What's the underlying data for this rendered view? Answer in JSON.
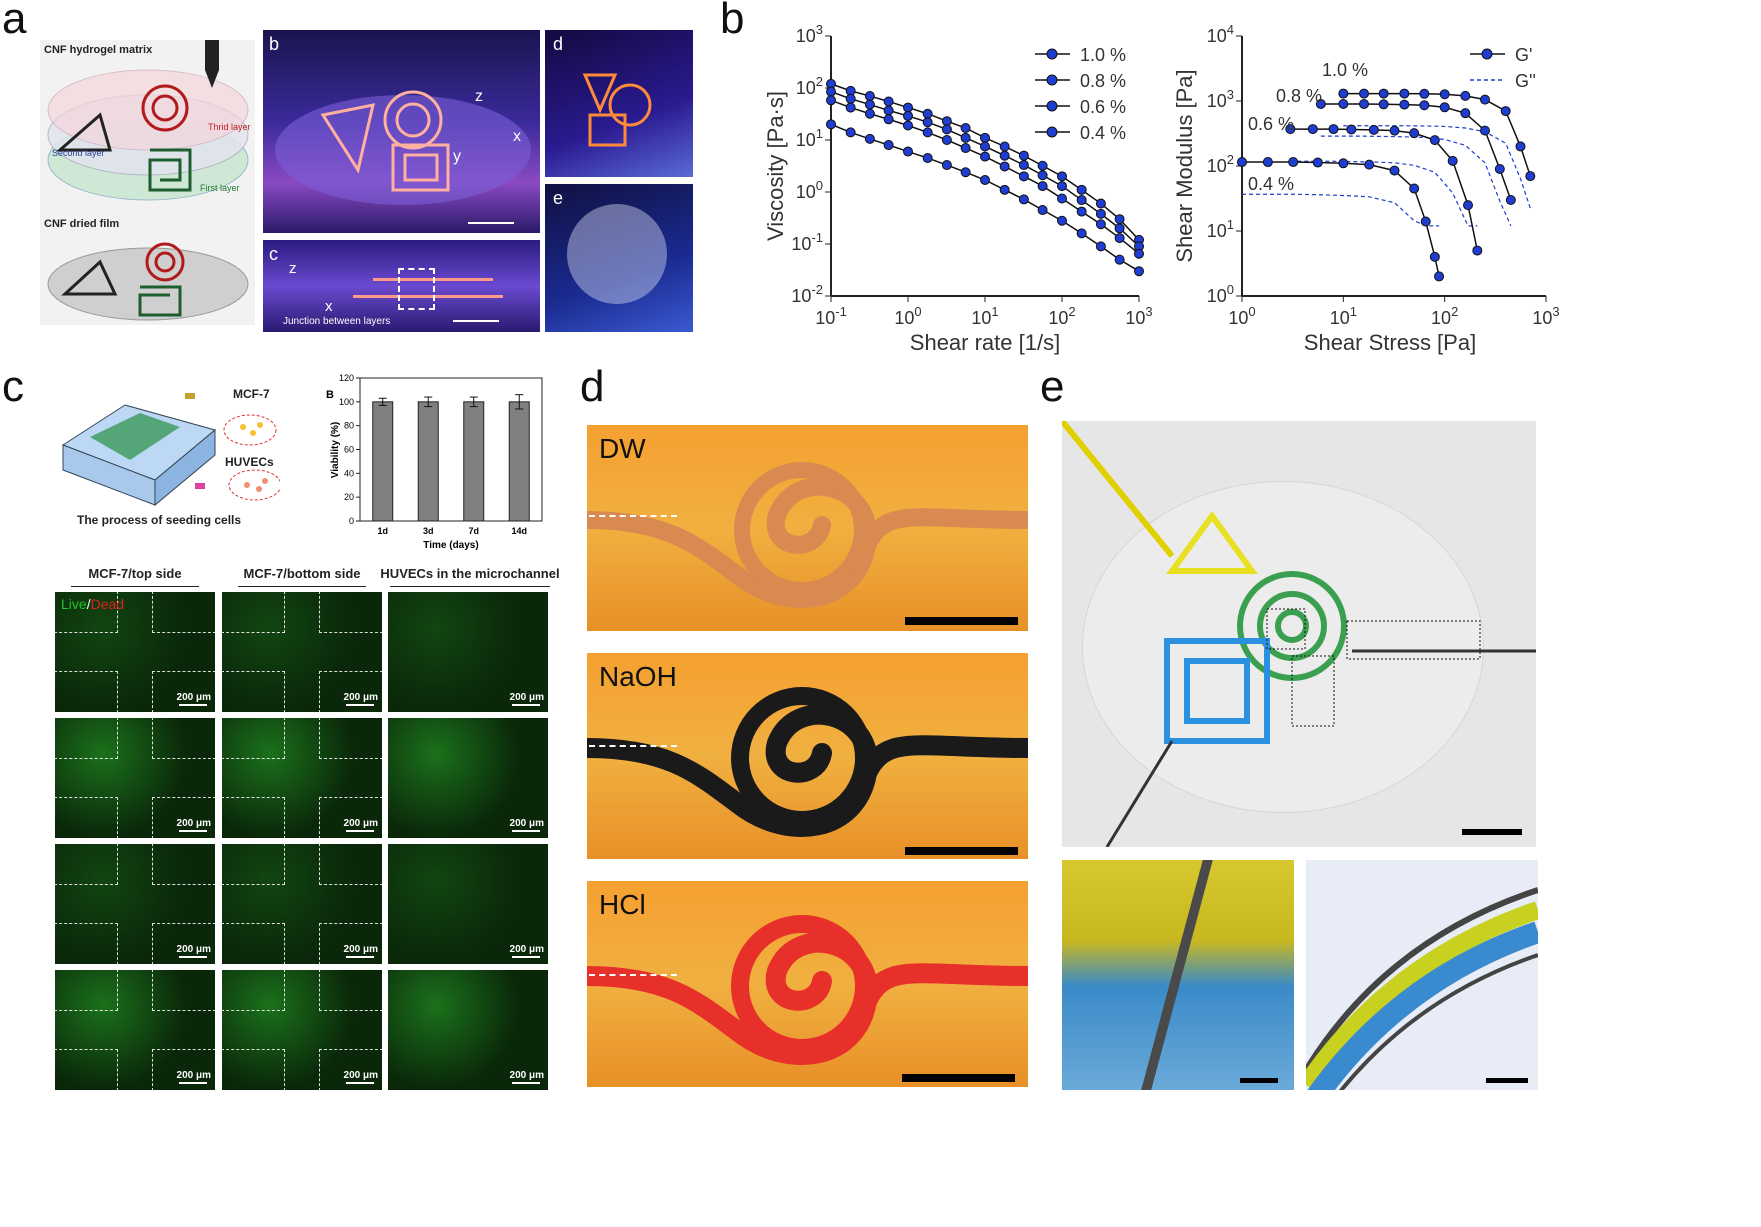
{
  "panels": {
    "a": "a",
    "b": "b",
    "c": "c",
    "d": "d",
    "e": "e"
  },
  "panel_a": {
    "schematic_top_title": "CNF hydrogel matrix",
    "schematic_bottom_title": "CNF dried film",
    "layer_third": "Thrid layer",
    "layer_second": "Second layer",
    "layer_first": "First layer",
    "sub_b": "b",
    "sub_c": "c",
    "sub_d": "d",
    "sub_e": "e",
    "axis_z": "z",
    "axis_x": "x",
    "axis_y": "y",
    "junction": "Junction between layers"
  },
  "panel_c": {
    "cell_top": "MCF-7",
    "cell_bottom": "HUVECs",
    "process": "The process of seeding cells",
    "bar_label": "B",
    "col1": "MCF-7/top side",
    "col2": "MCF-7/bottom side",
    "col3": "HUVECs in the microchannel",
    "live": "Live",
    "slash": "/",
    "dead": "Dead",
    "scale": "200 μm"
  },
  "panel_d": {
    "row1": "DW",
    "row2": "NaOH",
    "row3": "HCl"
  },
  "chart_data": [
    {
      "type": "line",
      "xlabel": "Shear rate [1/s]",
      "ylabel": "Viscosity [Pa·s]",
      "xscale": "log",
      "yscale": "log",
      "xlim": [
        0.1,
        1000
      ],
      "ylim": [
        0.01,
        1000
      ],
      "xticks": [
        "10-1",
        "100",
        "101",
        "102",
        "103"
      ],
      "yticks": [
        "10-2",
        "10-1",
        "100",
        "101",
        "102",
        "103"
      ],
      "x": [
        0.1,
        0.18,
        0.32,
        0.56,
        1,
        1.8,
        3.2,
        5.6,
        10,
        18,
        32,
        56,
        100,
        180,
        320,
        560,
        1000
      ],
      "series": [
        {
          "name": "1.0 %",
          "values": [
            120,
            88,
            70,
            55,
            42,
            32,
            23,
            17,
            11,
            7.5,
            5,
            3.2,
            2,
            1.1,
            0.6,
            0.3,
            0.12
          ]
        },
        {
          "name": "0.8 %",
          "values": [
            85,
            62,
            48,
            37,
            29,
            22,
            16,
            11,
            7.5,
            5,
            3.3,
            2.1,
            1.3,
            0.7,
            0.38,
            0.2,
            0.09
          ]
        },
        {
          "name": "0.6 %",
          "values": [
            58,
            42,
            32,
            25,
            19,
            14,
            10,
            7,
            4.8,
            3.1,
            2,
            1.3,
            0.75,
            0.42,
            0.24,
            0.13,
            0.065
          ]
        },
        {
          "name": "0.4 %",
          "values": [
            20,
            14,
            10.5,
            8,
            6,
            4.5,
            3.3,
            2.4,
            1.7,
            1.1,
            0.72,
            0.45,
            0.28,
            0.16,
            0.09,
            0.05,
            0.03
          ]
        }
      ],
      "legend": "top-right"
    },
    {
      "type": "line",
      "xlabel": "Shear Stress [Pa]",
      "ylabel": "Shear Modulus [Pa]",
      "xscale": "log",
      "yscale": "log",
      "xlim": [
        1,
        1000
      ],
      "ylim": [
        1,
        10000
      ],
      "xticks": [
        "100",
        "101",
        "102",
        "103"
      ],
      "yticks": [
        "100",
        "101",
        "102",
        "103",
        "104"
      ],
      "legend_entries": [
        "G'",
        "G''"
      ],
      "legend": "top-right",
      "annotations": [
        "1.0 %",
        "0.8 %",
        "0.6 %",
        "0.4 %"
      ],
      "series": [
        {
          "name": "1.0 %",
          "x": [
            10,
            16,
            25,
            40,
            63,
            100,
            160,
            250,
            400,
            560,
            700
          ],
          "values": [
            1300,
            1300,
            1300,
            1300,
            1290,
            1270,
            1200,
            1050,
            700,
            200,
            70
          ]
        },
        {
          "name": "0.8 %",
          "x": [
            6,
            10,
            16,
            25,
            40,
            63,
            100,
            160,
            250,
            350,
            450
          ],
          "values": [
            900,
            900,
            900,
            890,
            880,
            860,
            800,
            650,
            350,
            90,
            30
          ]
        },
        {
          "name": "0.6 %",
          "x": [
            3,
            5,
            8,
            12,
            20,
            32,
            50,
            80,
            120,
            170,
            210
          ],
          "values": [
            370,
            370,
            370,
            365,
            360,
            350,
            320,
            250,
            120,
            25,
            5
          ]
        },
        {
          "name": "0.4 %",
          "x": [
            1,
            1.8,
            3.2,
            5.6,
            10,
            18,
            32,
            50,
            65,
            80,
            88
          ],
          "values": [
            115,
            115,
            115,
            113,
            110,
            105,
            85,
            45,
            14,
            4,
            2
          ]
        }
      ]
    },
    {
      "type": "bar",
      "categories": [
        "1d",
        "3d",
        "7d",
        "14d"
      ],
      "values": [
        100,
        100,
        100,
        100
      ],
      "errors": [
        3,
        4,
        4,
        6
      ],
      "xlabel": "Time (days)",
      "ylabel": "Viability (%)",
      "ylim": [
        0,
        120
      ],
      "yticks": [
        "0",
        "20",
        "40",
        "60",
        "80",
        "100",
        "120"
      ]
    }
  ],
  "colors": {
    "viscosity_marker": "#1f3dd0",
    "gprime_line": "#1f3dd0",
    "bar_fill": "#808080",
    "live": "#22c02a",
    "dead": "#e02020"
  }
}
